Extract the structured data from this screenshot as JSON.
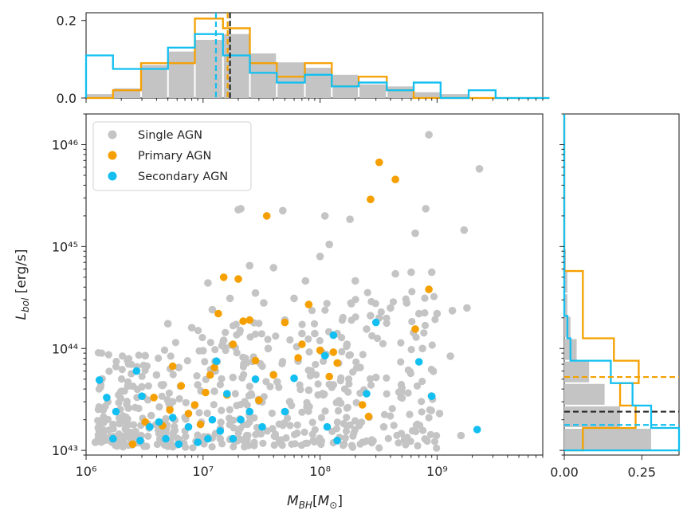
{
  "colors": {
    "single": "#c4c4c4",
    "primary": "#f5a000",
    "secondary": "#12bff0",
    "median_all": "#262626"
  },
  "chart_data": [
    {
      "type": "scatter",
      "xlabel": "M_BH[M_⊙]",
      "ylabel": "L_bol [erg/s]",
      "xscale": "log",
      "yscale": "log",
      "xlim": [
        1000000,
        8000000000
      ],
      "ylim": [
        9000000000000000000000000000000000000000000,
        20000000000000000000000000000000000000000000000
      ],
      "x_ticks": [
        "10⁶",
        "10⁷",
        "10⁸",
        "10⁹"
      ],
      "y_ticks": [
        "10⁴³",
        "10⁴⁴",
        "10⁴⁵",
        "10⁴⁶"
      ],
      "legend": {
        "position": "upper-left",
        "entries": [
          "Single AGN",
          "Primary AGN",
          "Secondary AGN"
        ]
      },
      "series": [
        {
          "name": "Single AGN",
          "note": "~900 sources, seeded subset listed; remainder is dense cloud between logM 6.0-9.0 and logL 43.0-44.5",
          "points": [
            [
              1200000.0,
              1.2e+43
            ],
            [
              1400000.0,
              1.4e+43
            ],
            [
              1700000.0,
              1.8e+43
            ],
            [
              1900000.0,
              3.5e+43
            ],
            [
              2300000.0,
              2.6e+43
            ],
            [
              2600000.0,
              1.5e+43
            ],
            [
              3000000.0,
              4.2e+43
            ],
            [
              3200000.0,
              8.5e+43
            ],
            [
              3600000.0,
              2.2e+43
            ],
            [
              4000000.0,
              5.5e+43
            ],
            [
              4500000.0,
              1.2e+43
            ],
            [
              5000000.0,
              1.75e+44
            ],
            [
              5500000.0,
              3e+43
            ],
            [
              6200000.0,
              6.5e+43
            ],
            [
              7000000.0,
              2.1e+43
            ],
            [
              8000000.0,
              1.6e+44
            ],
            [
              9000000.0,
              4.4e+43
            ],
            [
              10000000.0,
              9.5e+43
            ],
            [
              11000000.0,
              4.4e+44
            ],
            [
              12000000.0,
              2.4e+44
            ],
            [
              12500000.0,
              3.8e+43
            ],
            [
              14000000.0,
              1.3e+43
            ],
            [
              15000000.0,
              1.2e+44
            ],
            [
              17000000.0,
              3.1e+44
            ],
            [
              18000000.0,
              5.2e+43
            ],
            [
              20000000.0,
              2.3e+45
            ],
            [
              21000000.0,
              2.35e+45
            ],
            [
              23000000.0,
              8e+43
            ],
            [
              25000000.0,
              6.5e+44
            ],
            [
              28000000.0,
              3.5e+44
            ],
            [
              30000000.0,
              1.5e+43
            ],
            [
              33000000.0,
              2.8e+44
            ],
            [
              36000000.0,
              1e+44
            ],
            [
              40000000.0,
              6.2e+44
            ],
            [
              43000000.0,
              4.7e+43
            ],
            [
              48000000.0,
              2.25e+45
            ],
            [
              50000000.0,
              1.9e+44
            ],
            [
              55000000.0,
              3e+43
            ],
            [
              60000000.0,
              3.1e+44
            ],
            [
              65000000.0,
              7.5e+43
            ],
            [
              70000000.0,
              1.4e+44
            ],
            [
              75000000.0,
              4.6e+44
            ],
            [
              80000000.0,
              3.9e+43
            ],
            [
              90000000.0,
              1.4e+44
            ],
            [
              100000000.0,
              8e+44
            ],
            [
              110000000.0,
              2e+45
            ],
            [
              120000000.0,
              1.05e+45
            ],
            [
              130000000.0,
              4.4e+43
            ],
            [
              140000000.0,
              1.4e+44
            ],
            [
              150000000.0,
              2.9e+43
            ],
            [
              170000000.0,
              1.1e+44
            ],
            [
              180000000.0,
              1.85e+45
            ],
            [
              200000000.0,
              4.6e+44
            ],
            [
              220000000.0,
              6.5e+43
            ],
            [
              250000000.0,
              1.55e+44
            ],
            [
              270000000.0,
              2.1e+44
            ],
            [
              300000000.0,
              5.2e+43
            ],
            [
              320000000.0,
              2e+44
            ],
            [
              350000000.0,
              1.7e+43
            ],
            [
              400000000.0,
              2.5e+44
            ],
            [
              440000000.0,
              5.4e+44
            ],
            [
              500000000.0,
              4.1e+43
            ],
            [
              550000000.0,
              2.8e+44
            ],
            [
              600000000.0,
              5.6e+44
            ],
            [
              650000000.0,
              1.35e+45
            ],
            [
              700000000.0,
              2.2e+44
            ],
            [
              750000000.0,
              1e+44
            ],
            [
              800000000.0,
              2.35e+45
            ],
            [
              850000000.0,
              1.25e+46
            ],
            [
              900000000.0,
              5.6e+44
            ],
            [
              1000000000.0,
              2.2e+44
            ],
            [
              1050000000.0,
              2.3e+43
            ],
            [
              1300000000.0,
              8.4e+43
            ],
            [
              1350000000.0,
              2.35e+44
            ],
            [
              1600000000.0,
              1.4e+43
            ],
            [
              1700000000.0,
              1.45e+45
            ],
            [
              1800000000.0,
              2.5e+44
            ],
            [
              2300000000.0,
              5.8e+45
            ]
          ]
        },
        {
          "name": "Primary AGN",
          "points": [
            [
              2500000.0,
              1.15e+43
            ],
            [
              3200000.0,
              1.9e+43
            ],
            [
              3800000.0,
              3.3e+43
            ],
            [
              4500000.0,
              1.75e+43
            ],
            [
              5200000.0,
              2.5e+43
            ],
            [
              5500000.0,
              6.7e+43
            ],
            [
              6500000.0,
              4.3e+43
            ],
            [
              7500000.0,
              2.3e+43
            ],
            [
              8500000.0,
              2.8e+43
            ],
            [
              9500000.0,
              1.8e+43
            ],
            [
              10500000.0,
              3.7e+43
            ],
            [
              11500000.0,
              5.5e+43
            ],
            [
              12500000.0,
              6.5e+43
            ],
            [
              13500000.0,
              2.2e+44
            ],
            [
              15000000.0,
              5e+44
            ],
            [
              16000000.0,
              3.5e+43
            ],
            [
              18000000.0,
              1.1e+44
            ],
            [
              20000000.0,
              4.8e+44
            ],
            [
              22000000.0,
              1.85e+44
            ],
            [
              25000000.0,
              1.9e+44
            ],
            [
              28000000.0,
              7.6e+43
            ],
            [
              30000000.0,
              3.1e+43
            ],
            [
              35000000.0,
              2e+45
            ],
            [
              40000000.0,
              5.5e+43
            ],
            [
              50000000.0,
              1.8e+44
            ],
            [
              65000000.0,
              8.1e+43
            ],
            [
              70000000.0,
              1.1e+44
            ],
            [
              80000000.0,
              2.7e+44
            ],
            [
              100000000.0,
              9.6e+43
            ],
            [
              120000000.0,
              5.3e+43
            ],
            [
              130000000.0,
              9.2e+43
            ],
            [
              140000000.0,
              7.2e+43
            ],
            [
              230000000.0,
              2.8e+43
            ],
            [
              260000000.0,
              2.15e+43
            ],
            [
              270000000.0,
              2.9e+45
            ],
            [
              320000000.0,
              6.7e+45
            ],
            [
              440000000.0,
              4.55e+45
            ],
            [
              650000000.0,
              1.55e+44
            ],
            [
              850000000.0,
              3.8e+44
            ]
          ]
        },
        {
          "name": "Secondary AGN",
          "points": [
            [
              1300000.0,
              4.9e+43
            ],
            [
              1500000.0,
              3.3e+43
            ],
            [
              1700000.0,
              1.3e+43
            ],
            [
              1800000.0,
              2.4e+43
            ],
            [
              2700000.0,
              6e+43
            ],
            [
              2900000.0,
              1.25e+43
            ],
            [
              3000000.0,
              3.4e+43
            ],
            [
              3500000.0,
              1.7e+43
            ],
            [
              4200000.0,
              1.9e+43
            ],
            [
              4800000.0,
              1.3e+43
            ],
            [
              5500000.0,
              2.1e+43
            ],
            [
              6200000.0,
              1.15e+43
            ],
            [
              7500000.0,
              1.7e+43
            ],
            [
              9000000.0,
              1.2e+43
            ],
            [
              11000000.0,
              1.3e+43
            ],
            [
              12000000.0,
              2e+43
            ],
            [
              13000000.0,
              7.5e+43
            ],
            [
              14000000.0,
              1.55e+43
            ],
            [
              16000000.0,
              3.6e+43
            ],
            [
              18000000.0,
              1.3e+43
            ],
            [
              21000000.0,
              2e+43
            ],
            [
              25000000.0,
              2.4e+43
            ],
            [
              28000000.0,
              5e+43
            ],
            [
              32000000.0,
              1.7e+43
            ],
            [
              50000000.0,
              2.4e+43
            ],
            [
              60000000.0,
              5.1e+43
            ],
            [
              110000000.0,
              8.5e+43
            ],
            [
              115000000.0,
              1.7e+43
            ],
            [
              130000000.0,
              1.35e+44
            ],
            [
              140000000.0,
              1.25e+43
            ],
            [
              250000000.0,
              3.6e+43
            ],
            [
              300000000.0,
              1.8e+44
            ],
            [
              700000000.0,
              7.4e+43
            ],
            [
              900000000.0,
              3.4e+43
            ],
            [
              2200000000.0,
              1.6e+43
            ]
          ]
        }
      ]
    },
    {
      "type": "histogram",
      "orientation": "vertical",
      "bin_axis": "log M_BH",
      "ylim": [
        0,
        0.22
      ],
      "y_ticks": [
        "0.0",
        "0.2"
      ],
      "bin_edges_log": [
        6.0,
        6.23,
        6.47,
        6.7,
        6.93,
        7.17,
        7.4,
        7.63,
        7.87,
        8.1,
        8.33,
        8.57,
        8.8,
        9.03,
        9.27,
        9.5,
        9.73,
        9.96
      ],
      "series": [
        {
          "name": "Single AGN",
          "style": "filled",
          "values": [
            0.01,
            0.025,
            0.085,
            0.12,
            0.15,
            0.165,
            0.115,
            0.092,
            0.078,
            0.06,
            0.035,
            0.03,
            0.015,
            0.01,
            0.0,
            0.0,
            0.0
          ]
        },
        {
          "name": "Primary AGN",
          "style": "step",
          "values": [
            0.0,
            0.02,
            0.09,
            0.09,
            0.205,
            0.18,
            0.09,
            0.055,
            0.09,
            0.03,
            0.055,
            0.02,
            0.0,
            0.0,
            0.0,
            0.0,
            0.0
          ]
        },
        {
          "name": "Secondary AGN",
          "style": "step",
          "values": [
            0.11,
            0.075,
            0.075,
            0.13,
            0.165,
            0.11,
            0.065,
            0.04,
            0.06,
            0.03,
            0.04,
            0.02,
            0.04,
            0.0,
            0.02,
            0.0,
            0.0
          ]
        }
      ],
      "median_lines_log": {
        "all": 7.23,
        "primary": 7.21,
        "secondary": 7.11
      }
    },
    {
      "type": "histogram",
      "orientation": "horizontal",
      "bin_axis": "log L_bol",
      "xlim": [
        0,
        0.37
      ],
      "x_ticks": [
        "0.00",
        "0.25"
      ],
      "bin_edges_log": [
        43.0,
        43.22,
        43.44,
        43.66,
        43.88,
        44.1,
        44.32,
        44.54,
        44.76,
        44.98,
        45.2,
        45.42,
        45.64,
        45.86,
        46.08,
        46.3
      ],
      "series": [
        {
          "name": "Single AGN",
          "style": "filled",
          "values": [
            0.28,
            0.18,
            0.13,
            0.08,
            0.04,
            0.02,
            0.01,
            0.01,
            0.005,
            0.0,
            0.0,
            0.0,
            0.0,
            0.0,
            0.0
          ]
        },
        {
          "name": "Primary AGN",
          "style": "step",
          "values": [
            0.06,
            0.23,
            0.18,
            0.24,
            0.16,
            0.06,
            0.06,
            0.06,
            0.0,
            0.0,
            0.0,
            0.0,
            0.0,
            0.0,
            0.0
          ]
        },
        {
          "name": "Secondary AGN",
          "style": "step",
          "values": [
            0.37,
            0.28,
            0.22,
            0.15,
            0.02,
            0.01,
            0.0,
            0.0,
            0.0,
            0.0,
            0.0,
            0.0,
            0.0,
            0.0,
            0.0
          ]
        }
      ],
      "median_lines_log": {
        "all": 43.38,
        "primary": 43.72,
        "secondary": 43.25
      }
    }
  ]
}
